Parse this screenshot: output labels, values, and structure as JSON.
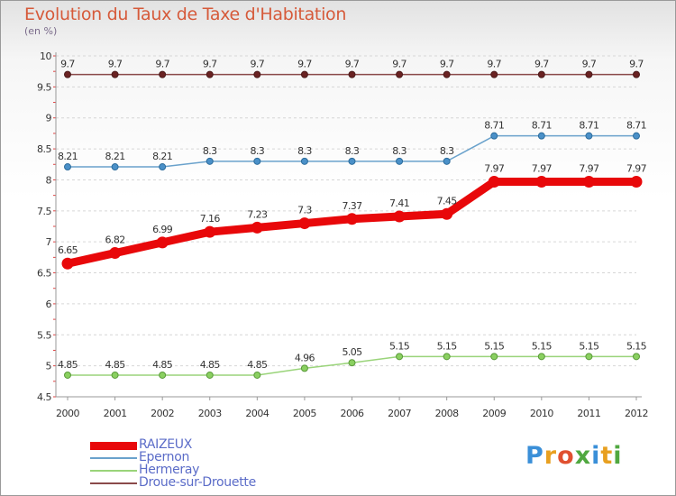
{
  "title": "Evolution du Taux de Taxe d'Habitation",
  "unit_label": "(en %)",
  "logo": {
    "text": "Proxiti",
    "colors": [
      "#3a8fd8",
      "#e8a020",
      "#e05030",
      "#50a840",
      "#3a8fd8",
      "#e8a020",
      "#50a840"
    ]
  },
  "chart_data": {
    "type": "line",
    "title": "Evolution du Taux de Taxe d'Habitation",
    "ylabel": "(en %)",
    "xlabel": "",
    "ylim": [
      4.5,
      10
    ],
    "yticks": [
      "4.5",
      "5",
      "5.5",
      "6",
      "6.5",
      "7",
      "7.5",
      "8",
      "8.5",
      "9",
      "9.5",
      "10"
    ],
    "x": [
      "2000",
      "2001",
      "2002",
      "2003",
      "2004",
      "2005",
      "2006",
      "2007",
      "2008",
      "2009",
      "2010",
      "2011",
      "2012"
    ],
    "grid": "horizontal dashed",
    "legend": "bottom-left",
    "series": [
      {
        "name": "RAIZEUX",
        "color": "#e8080a",
        "values": [
          6.65,
          6.82,
          6.99,
          7.16,
          7.23,
          7.3,
          7.37,
          7.41,
          7.45,
          7.97,
          7.97,
          7.97,
          7.97
        ],
        "labels": [
          "6.65",
          "6.82",
          "6.99",
          "7.16",
          "7.23",
          "7.3",
          "7.37",
          "7.41",
          "7.45",
          "7.97",
          "7.97",
          "7.97",
          "7.97"
        ]
      },
      {
        "name": "Epernon",
        "color": "#6aa2cc",
        "values": [
          8.21,
          8.21,
          8.21,
          8.3,
          8.3,
          8.3,
          8.3,
          8.3,
          8.3,
          8.71,
          8.71,
          8.71,
          8.71
        ],
        "labels": [
          "8.21",
          "8.21",
          "8.21",
          "8.3",
          "8.3",
          "8.3",
          "8.3",
          "8.3",
          "8.3",
          "8.71",
          "8.71",
          "8.71",
          "8.71"
        ]
      },
      {
        "name": "Hermeray",
        "color": "#9ad47a",
        "values": [
          4.85,
          4.85,
          4.85,
          4.85,
          4.85,
          4.96,
          5.05,
          5.15,
          5.15,
          5.15,
          5.15,
          5.15,
          5.15
        ],
        "labels": [
          "4.85",
          "4.85",
          "4.85",
          "4.85",
          "4.85",
          "4.96",
          "5.05",
          "5.15",
          "5.15",
          "5.15",
          "5.15",
          "5.15",
          "5.15"
        ]
      },
      {
        "name": "Droue-sur-Drouette",
        "color": "#8a4a4a",
        "values": [
          9.7,
          9.7,
          9.7,
          9.7,
          9.7,
          9.7,
          9.7,
          9.7,
          9.7,
          9.7,
          9.7,
          9.7,
          9.7
        ],
        "labels": [
          "9.7",
          "9.7",
          "9.7",
          "9.7",
          "9.7",
          "9.7",
          "9.7",
          "9.7",
          "9.7",
          "9.7",
          "9.7",
          "9.7",
          "9.7"
        ]
      }
    ]
  }
}
